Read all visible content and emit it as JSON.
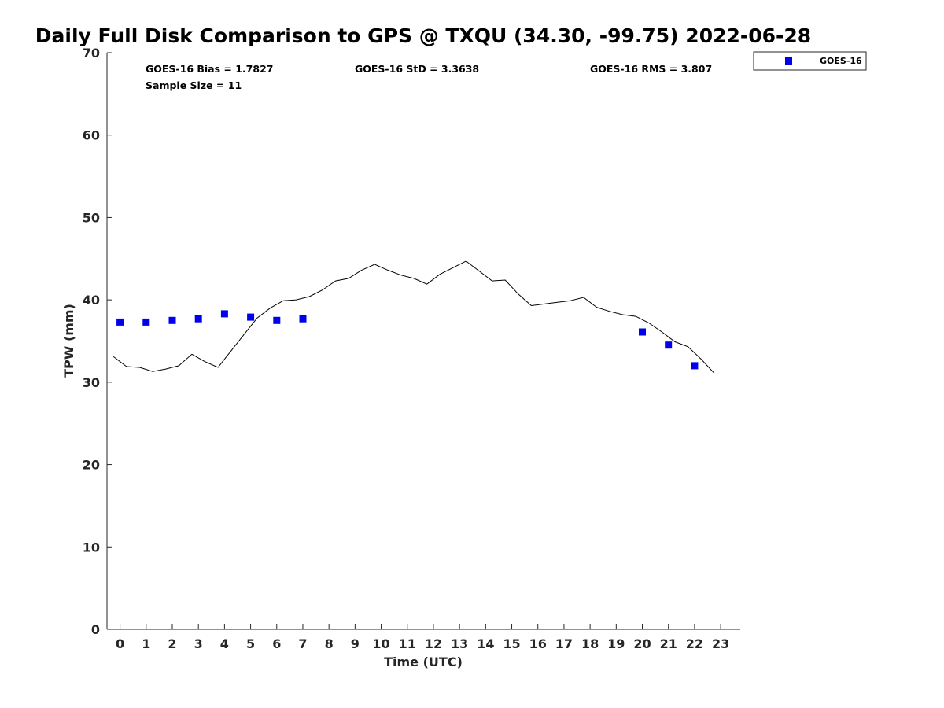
{
  "chart_data": {
    "type": "scatter",
    "title": "Daily Full Disk Comparison to GPS @ TXQU (34.30, -99.75) 2022-06-28",
    "xlabel": "Time (UTC)",
    "ylabel": "TPW (mm)",
    "xlim": [
      -0.5,
      23.75
    ],
    "ylim": [
      0,
      70
    ],
    "x_ticks": [
      0,
      1,
      2,
      3,
      4,
      5,
      6,
      7,
      8,
      9,
      10,
      11,
      12,
      13,
      14,
      15,
      16,
      17,
      18,
      19,
      20,
      21,
      22,
      23
    ],
    "y_ticks": [
      0,
      10,
      20,
      30,
      40,
      50,
      60,
      70
    ],
    "grid": false,
    "legend_position": "top-right, outside axes",
    "stats": {
      "bias": "GOES-16 Bias = 1.7827",
      "std": "GOES-16 StD = 3.3638",
      "rms": "GOES-16 RMS = 3.807",
      "sample": "Sample Size = 11"
    },
    "series": [
      {
        "name": "GOES-16",
        "kind": "scatter",
        "marker": "square",
        "color": "#0000ee",
        "x": [
          0,
          1,
          2,
          3,
          4,
          5,
          6,
          7,
          20,
          21,
          22
        ],
        "y": [
          37.3,
          37.3,
          37.5,
          37.7,
          38.3,
          37.9,
          37.5,
          37.7,
          36.1,
          34.5,
          32.0
        ]
      },
      {
        "kind": "line",
        "color": "#000000",
        "x": [
          -0.25,
          0.25,
          0.75,
          1.25,
          1.75,
          2.25,
          2.75,
          3.25,
          3.75,
          4.25,
          4.75,
          5.25,
          5.75,
          6.25,
          6.75,
          7.25,
          7.75,
          8.25,
          8.75,
          9.25,
          9.75,
          10.25,
          10.75,
          11.25,
          11.75,
          12.25,
          12.75,
          13.25,
          13.75,
          14.25,
          14.75,
          15.25,
          15.75,
          16.25,
          16.75,
          17.25,
          17.75,
          18.25,
          18.75,
          19.25,
          19.75,
          20.25,
          20.75,
          21.25,
          21.75,
          22.25,
          22.75
        ],
        "y": [
          33.1,
          31.9,
          31.8,
          31.3,
          31.6,
          32.0,
          33.4,
          32.5,
          31.8,
          33.8,
          35.8,
          37.8,
          39.0,
          39.9,
          40.0,
          40.4,
          41.2,
          42.3,
          42.6,
          43.6,
          44.3,
          43.6,
          43.0,
          42.6,
          41.9,
          43.1,
          43.9,
          44.7,
          43.5,
          42.3,
          42.4,
          40.7,
          39.3,
          39.5,
          39.7,
          39.9,
          40.3,
          39.1,
          38.6,
          38.2,
          38.0,
          37.2,
          36.1,
          34.9,
          34.3,
          32.8,
          31.1
        ]
      }
    ]
  }
}
